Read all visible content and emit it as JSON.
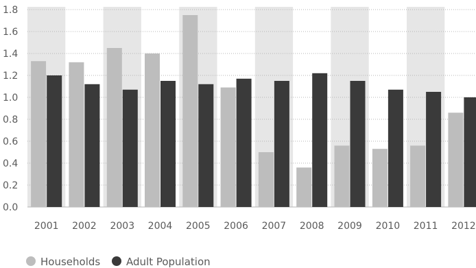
{
  "chart_data": {
    "type": "bar",
    "title": "",
    "xlabel": "",
    "ylabel": "",
    "categories": [
      "2001",
      "2002",
      "2003",
      "2004",
      "2005",
      "2006",
      "2007",
      "2008",
      "2009",
      "2010",
      "2011",
      "2012"
    ],
    "series": [
      {
        "name": "Households",
        "color": "#bdbdbd",
        "values": [
          1.33,
          1.32,
          1.45,
          1.4,
          1.75,
          1.09,
          0.5,
          0.36,
          0.56,
          0.53,
          0.56,
          0.86
        ]
      },
      {
        "name": "Adult Population",
        "color": "#3a3a3a",
        "values": [
          1.2,
          1.12,
          1.07,
          1.15,
          1.12,
          1.17,
          1.15,
          1.22,
          1.15,
          1.07,
          1.05,
          1.0
        ]
      }
    ],
    "ylim": [
      0,
      1.8
    ],
    "yticks": [
      "0.0",
      "0.2",
      "0.4",
      "0.6",
      "0.8",
      "1.0",
      "1.2",
      "1.4",
      "1.6",
      "1.8"
    ],
    "grid": true,
    "legend_position": "bottom-left",
    "band_color": "#e6e6e6",
    "grid_color": "#b5b5b5"
  }
}
